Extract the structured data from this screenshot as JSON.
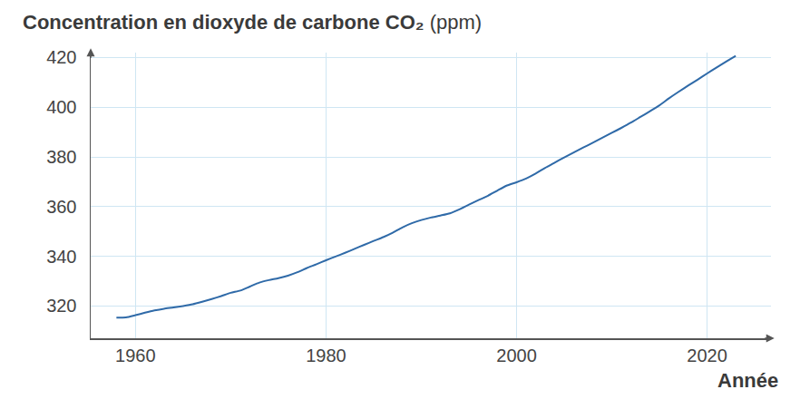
{
  "chart_data": {
    "type": "line",
    "ylabel": "Concentration en dioxyde de carbone CO₂ (ppm)",
    "xlabel": "Année",
    "x": [
      1958,
      1959,
      1960,
      1961,
      1962,
      1963,
      1964,
      1965,
      1966,
      1967,
      1968,
      1969,
      1970,
      1971,
      1972,
      1973,
      1974,
      1975,
      1976,
      1977,
      1978,
      1979,
      1980,
      1981,
      1982,
      1983,
      1984,
      1985,
      1986,
      1987,
      1988,
      1989,
      1990,
      1991,
      1992,
      1993,
      1994,
      1995,
      1996,
      1997,
      1998,
      1999,
      2000,
      2001,
      2002,
      2003,
      2004,
      2005,
      2006,
      2007,
      2008,
      2009,
      2010,
      2011,
      2012,
      2013,
      2014,
      2015,
      2016,
      2017,
      2018,
      2019,
      2020,
      2021,
      2022,
      2023
    ],
    "values": [
      315.3,
      315.4,
      316.3,
      317.3,
      318.2,
      318.9,
      319.4,
      320.0,
      320.7,
      321.7,
      322.8,
      324.0,
      325.3,
      326.2,
      327.8,
      329.4,
      330.4,
      331.2,
      332.2,
      333.6,
      335.3,
      336.8,
      338.4,
      339.9,
      341.4,
      343.0,
      344.6,
      346.2,
      347.7,
      349.5,
      351.6,
      353.3,
      354.6,
      355.6,
      356.4,
      357.3,
      358.9,
      360.8,
      362.6,
      364.4,
      366.5,
      368.5,
      369.8,
      371.3,
      373.3,
      375.6,
      377.7,
      379.8,
      381.8,
      383.8,
      385.7,
      387.7,
      389.7,
      391.7,
      393.8,
      396.1,
      398.4,
      400.8,
      403.6,
      406.2,
      408.7,
      411.1,
      413.6,
      416.0,
      418.4,
      420.7
    ],
    "color": "#2f6aa8",
    "xlim": [
      1955.3,
      2026.7
    ],
    "ylim": [
      307,
      422
    ],
    "xticks": [
      1960,
      1980,
      2000,
      2020
    ],
    "yticks": [
      320,
      340,
      360,
      380,
      400,
      420
    ],
    "grid": true
  }
}
